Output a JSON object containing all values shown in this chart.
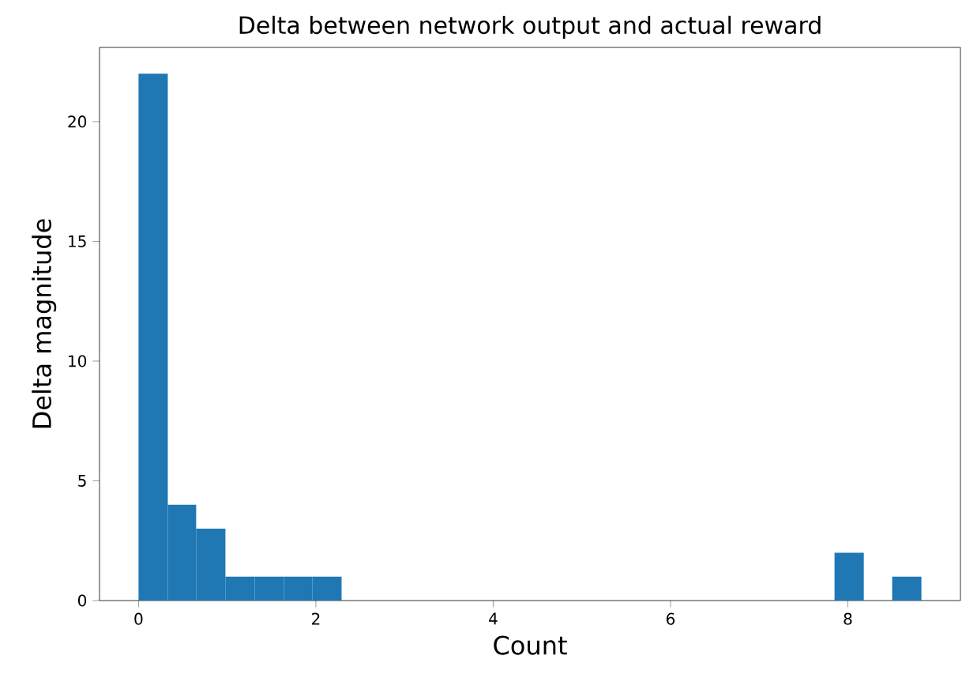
{
  "chart_data": {
    "type": "histogram",
    "title": "Delta between network output and actual reward",
    "xlabel": "Count",
    "ylabel": "Delta magnitude",
    "bins": [
      0,
      0.33,
      0.65,
      0.98,
      1.31,
      1.64,
      1.96,
      2.29,
      7.85,
      8.18,
      8.5,
      8.83
    ],
    "values": [
      22,
      4,
      3,
      1,
      1,
      1,
      1,
      0,
      2,
      0,
      1
    ],
    "color": "#1f77b4",
    "xlim": [
      -0.44,
      9.27
    ],
    "ylim": [
      0,
      23.1
    ],
    "xticks": [
      0,
      2,
      4,
      6,
      8
    ],
    "yticks": [
      0,
      5,
      10,
      15,
      20
    ],
    "grid": false
  }
}
